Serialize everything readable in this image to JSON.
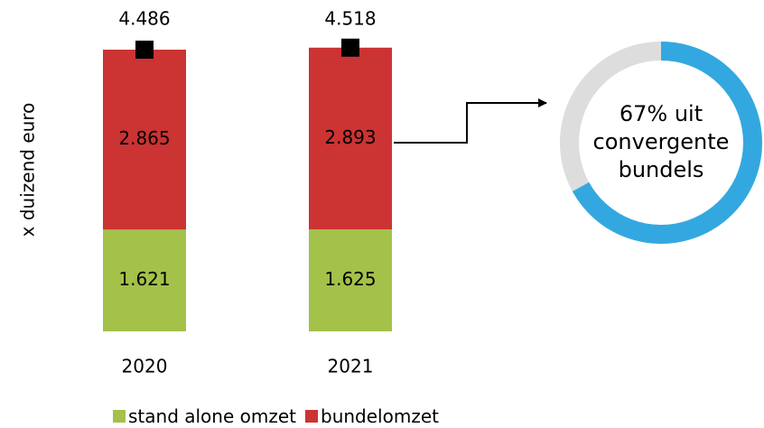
{
  "chart_data": {
    "type": "bar",
    "stacked": true,
    "ylabel": "x duizend  euro",
    "categories": [
      "2020",
      "2021"
    ],
    "series": [
      {
        "name": "stand alone omzet",
        "color": "#A4C14A",
        "values": [
          1621,
          1625
        ],
        "labels": [
          "1.621",
          "1.625"
        ]
      },
      {
        "name": "bundelomzet",
        "color": "#CC3333",
        "values": [
          2865,
          2893
        ],
        "labels": [
          "2.865",
          "2.893"
        ]
      }
    ],
    "totals": {
      "values": [
        4486,
        4518
      ],
      "labels": [
        "4.486",
        "4.518"
      ],
      "marker": "square",
      "marker_color": "#000000"
    },
    "ylim": [
      0,
      4486
    ],
    "grid": false,
    "legend_position": "bottom",
    "annotation": {
      "type": "donut",
      "points_from": "2021",
      "lines": [
        "67% uit",
        "convergente",
        "bundels"
      ],
      "share": 0.67,
      "highlight_color": "#33A8E0",
      "rest_color": "#DDDDDD"
    }
  }
}
